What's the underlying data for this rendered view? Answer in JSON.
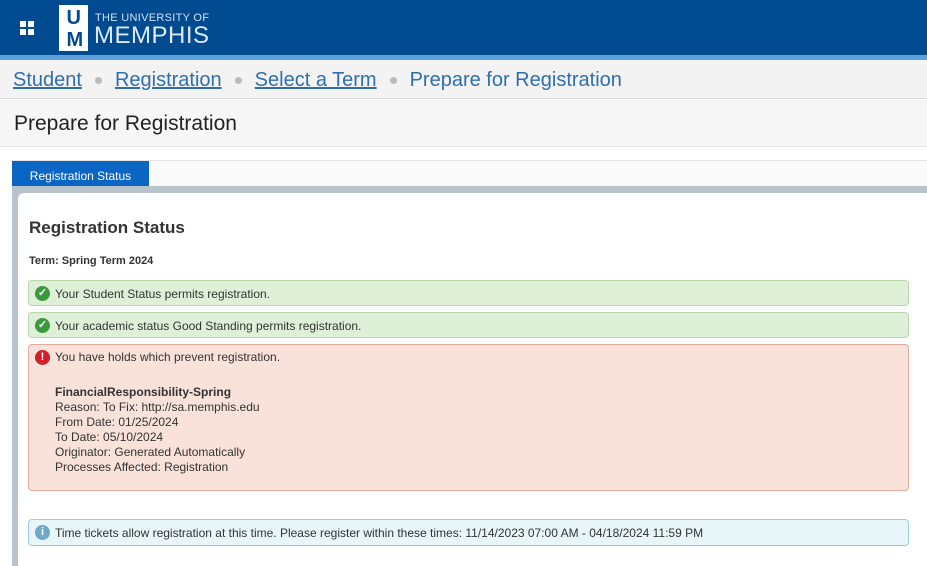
{
  "header": {
    "logo_text": "UM",
    "university_line1": "THE UNIVERSITY OF",
    "university_line2": "MEMPHIS"
  },
  "breadcrumb": [
    {
      "label": "Student"
    },
    {
      "label": "Registration"
    },
    {
      "label": "Select a Term"
    },
    {
      "label": "Prepare for Registration"
    }
  ],
  "page_title": "Prepare for Registration",
  "tabs": [
    {
      "label": "Registration Status",
      "active": true
    }
  ],
  "status": {
    "heading": "Registration Status",
    "term": "Term: Spring Term 2024",
    "messages": [
      {
        "type": "success",
        "text": "Your Student Status permits registration."
      },
      {
        "type": "success",
        "text": "Your academic status Good Standing permits registration."
      }
    ],
    "hold": {
      "text": "You have holds which prevent registration.",
      "name": "FinancialResponsibility-Spring",
      "reason": "Reason: To Fix: http://sa.memphis.edu",
      "from": "From Date: 01/25/2024",
      "to": "To Date: 05/10/2024",
      "originator": "Originator: Generated Automatically",
      "processes": "Processes Affected: Registration"
    },
    "info": "Time tickets allow registration at this time. Please register within these times: 11/14/2023 07:00 AM - 04/18/2024 11:59 PM"
  },
  "colors": {
    "header": "#004a8f",
    "tab": "#0a66c2",
    "success": "#dff0d8",
    "error": "#f9e2da",
    "info": "#e8f5f9"
  }
}
